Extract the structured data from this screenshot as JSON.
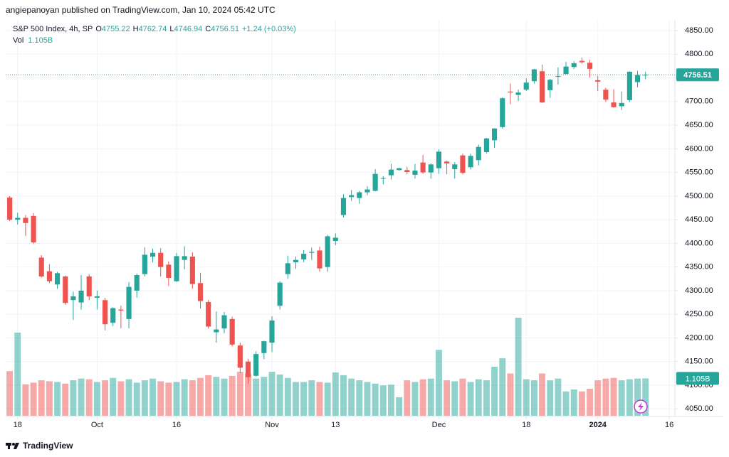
{
  "attribution": "angiepanoyan published on TradingView.com, Jan 10, 2024 05:42 UTC",
  "footer": "TradingView",
  "chart_data": {
    "type": "candlestick",
    "header": {
      "symbol": "S&P 500 Index, 4h, SP",
      "letters": [
        "O",
        "H",
        "L",
        "C"
      ],
      "change_label": "+1.24 (+0.03%)",
      "volume_name": "Vol",
      "volume_label": "1.105B"
    },
    "up_color": "#26a69a",
    "down_color": "#ef5350",
    "open": [
      4497,
      4450,
      4454,
      4458,
      4370,
      4341,
      4313,
      4330,
      4280,
      4275,
      4330,
      4285,
      4280,
      4232,
      4260,
      4240,
      4300,
      4335,
      4372,
      4380,
      4355,
      4320,
      4365,
      4372,
      4316,
      4276,
      4212,
      4220,
      4240,
      4184,
      4150,
      4120,
      4168,
      4190,
      4268,
      4335,
      4360,
      4366,
      4380,
      4385,
      4350,
      4405,
      4460,
      4498,
      4496,
      4508,
      4511,
      4538,
      4544,
      4555,
      4555,
      4545,
      4571,
      4550,
      4559,
      4573,
      4557,
      4586,
      4561,
      4576,
      4593,
      4618,
      4646,
      4721,
      4714,
      4725,
      4743,
      4764,
      4724,
      4753,
      4758,
      4773,
      4786,
      4782,
      4745,
      4725,
      4698,
      4690,
      4703,
      4741,
      4755.22
    ],
    "high": [
      4500,
      4465,
      4460,
      4464,
      4375,
      4356,
      4340,
      4332,
      4298,
      4333,
      4335,
      4300,
      4285,
      4265,
      4268,
      4318,
      4336,
      4392,
      4389,
      4390,
      4362,
      4380,
      4394,
      4381,
      4338,
      4280,
      4256,
      4255,
      4245,
      4190,
      4156,
      4172,
      4194,
      4246,
      4320,
      4374,
      4372,
      4386,
      4391,
      4393,
      4418,
      4421,
      4504,
      4513,
      4511,
      4521,
      4557,
      4542,
      4568,
      4560,
      4562,
      4568,
      4587,
      4569,
      4599,
      4575,
      4572,
      4590,
      4590,
      4609,
      4623,
      4643,
      4709,
      4738,
      4725,
      4749,
      4769,
      4778,
      4748,
      4772,
      4784,
      4785,
      4793,
      4788,
      4754,
      4729,
      4726,
      4721,
      4764,
      4765,
      4762.74
    ],
    "low": [
      4447,
      4440,
      4416,
      4399,
      4328,
      4316,
      4304,
      4270,
      4238,
      4260,
      4280,
      4260,
      4216,
      4225,
      4220,
      4220,
      4285,
      4330,
      4360,
      4330,
      4310,
      4318,
      4345,
      4304,
      4262,
      4220,
      4190,
      4210,
      4182,
      4126,
      4103,
      4118,
      4155,
      4170,
      4260,
      4325,
      4346,
      4360,
      4365,
      4340,
      4340,
      4396,
      4455,
      4490,
      4484,
      4502,
      4510,
      4525,
      4535,
      4554,
      4546,
      4537,
      4547,
      4537,
      4547,
      4546,
      4537,
      4546,
      4556,
      4565,
      4590,
      4602,
      4643,
      4694,
      4701,
      4722,
      4738,
      4697,
      4708,
      4736,
      4758,
      4769,
      4780,
      4751,
      4722,
      4699,
      4687,
      4682,
      4699,
      4730,
      4746.94
    ],
    "close": [
      4450,
      4454,
      4443,
      4402,
      4330,
      4320,
      4337,
      4274,
      4288,
      4300,
      4288,
      4288,
      4229,
      4263,
      4258,
      4308,
      4333,
      4376,
      4380,
      4350,
      4327,
      4373,
      4373,
      4314,
      4278,
      4224,
      4218,
      4248,
      4186,
      4137,
      4117,
      4166,
      4193,
      4237,
      4317,
      4358,
      4365,
      4378,
      4382,
      4347,
      4415,
      4412,
      4496,
      4502,
      4508,
      4514,
      4547,
      4538,
      4556,
      4559,
      4551,
      4554,
      4550,
      4567,
      4594,
      4569,
      4567,
      4549,
      4585,
      4604,
      4622,
      4643,
      4707,
      4719,
      4719,
      4740,
      4768,
      4698,
      4746,
      4754,
      4774,
      4781,
      4783,
      4769,
      4742,
      4704,
      4688,
      4697,
      4763,
      4756,
      4756.51
    ],
    "volume": [
      1.32,
      2.46,
      0.93,
      0.98,
      1.05,
      1.02,
      1.0,
      0.95,
      1.05,
      1.1,
      1.08,
      1.0,
      1.05,
      1.12,
      1.02,
      1.08,
      0.98,
      1.05,
      1.1,
      1.02,
      0.98,
      1.0,
      1.08,
      1.05,
      1.12,
      1.2,
      1.15,
      1.1,
      1.18,
      1.3,
      1.25,
      1.1,
      1.15,
      1.3,
      1.22,
      1.12,
      1.0,
      1.0,
      1.05,
      1.0,
      0.98,
      1.28,
      1.2,
      1.1,
      1.05,
      1.0,
      0.95,
      0.9,
      0.92,
      0.55,
      1.05,
      1.0,
      1.08,
      1.1,
      1.95,
      1.05,
      1.02,
      1.1,
      1.0,
      1.08,
      1.05,
      1.45,
      1.7,
      1.25,
      2.9,
      1.08,
      1.05,
      1.25,
      1.05,
      1.1,
      0.72,
      0.78,
      0.72,
      0.8,
      1.05,
      1.1,
      1.12,
      1.05,
      1.08,
      1.1,
      1.105
    ],
    "xlim": [
      -0.5,
      83.7
    ],
    "xticks": [
      {
        "value": 1,
        "label": "18"
      },
      {
        "value": 11,
        "label": "Oct"
      },
      {
        "value": 21,
        "label": "16"
      },
      {
        "value": 33,
        "label": "Nov"
      },
      {
        "value": 41,
        "label": "13"
      },
      {
        "value": 54,
        "label": "Dec"
      },
      {
        "value": 65,
        "label": "18"
      },
      {
        "value": 74,
        "label": "2024"
      },
      {
        "value": 83,
        "label": "16"
      }
    ],
    "ylim": [
      4033.9,
      4872.6
    ],
    "yticks": [
      {
        "value": 4050,
        "label": "4050.00"
      },
      {
        "value": 4100,
        "label": "4100.00"
      },
      {
        "value": 4150,
        "label": "4150.00"
      },
      {
        "value": 4200,
        "label": "4200.00"
      },
      {
        "value": 4250,
        "label": "4250.00"
      },
      {
        "value": 4300,
        "label": "4300.00"
      },
      {
        "value": 4350,
        "label": "4350.00"
      },
      {
        "value": 4400,
        "label": "4400.00"
      },
      {
        "value": 4450,
        "label": "4450.00"
      },
      {
        "value": 4500,
        "label": "4500.00"
      },
      {
        "value": 4550,
        "label": "4550.00"
      },
      {
        "value": 4600,
        "label": "4600.00"
      },
      {
        "value": 4650,
        "label": "4650.00"
      },
      {
        "value": 4700,
        "label": "4700.00"
      },
      {
        "value": 4750,
        "label": "4750.00"
      },
      {
        "value": 4800,
        "label": "4800.00"
      },
      {
        "value": 4850,
        "label": "4850.00"
      }
    ],
    "grid": true
  }
}
